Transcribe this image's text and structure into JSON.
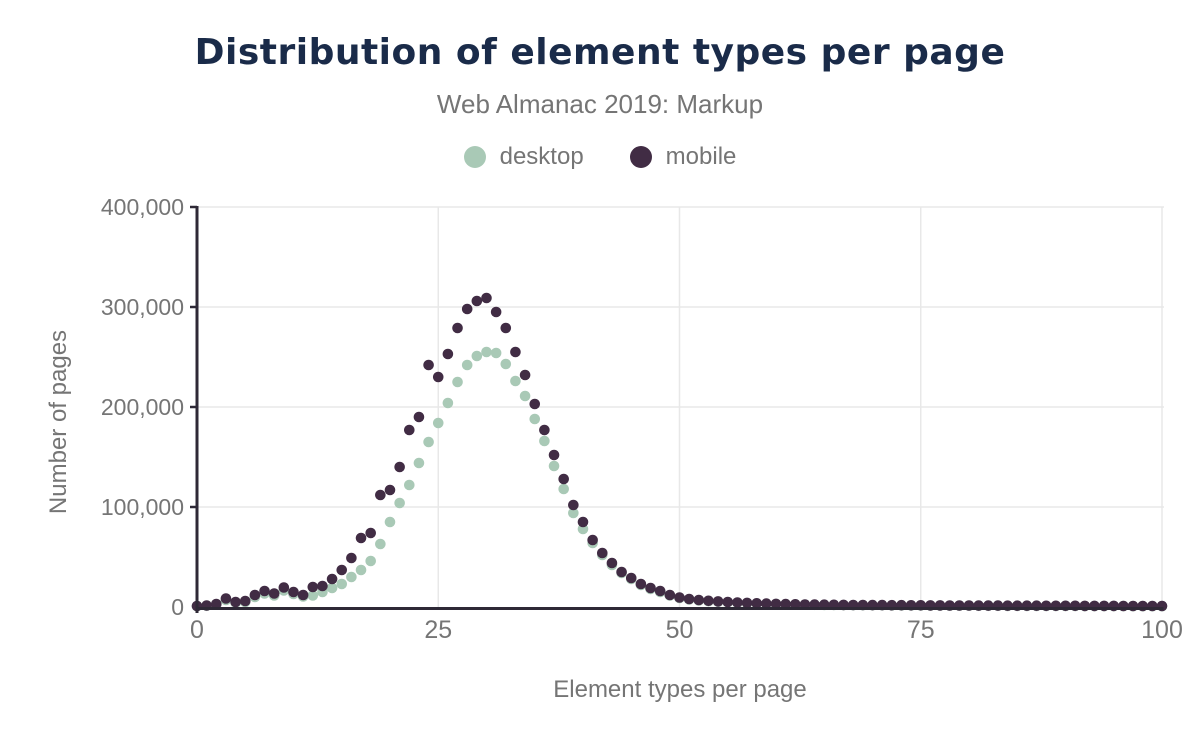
{
  "header": {
    "title": "Distribution of element types per page",
    "subtitle": "Web Almanac 2019: Markup"
  },
  "colors": {
    "title": "#1a2b49",
    "text_gray": "#757575",
    "axis": "#2e2936",
    "gridline": "#e8e8e8",
    "background": "#ffffff",
    "desktop_series": "#a9c9b6",
    "mobile_series": "#412c44"
  },
  "chart_data": {
    "type": "scatter",
    "title": "Distribution of element types per page",
    "subtitle": "Web Almanac 2019: Markup",
    "xlabel": "Element types per page",
    "ylabel": "Number of pages",
    "xlim": [
      0,
      100
    ],
    "ylim": [
      0,
      400000
    ],
    "x_ticks": [
      0,
      25,
      50,
      75,
      100
    ],
    "x_tick_labels": [
      "0",
      "25",
      "50",
      "75",
      "100"
    ],
    "y_ticks": [
      0,
      100000,
      200000,
      300000,
      400000
    ],
    "y_tick_labels": [
      "0",
      "100,000",
      "200,000",
      "300,000",
      "400,000"
    ],
    "grid": true,
    "legend_position": "top",
    "x": [
      0,
      1,
      2,
      3,
      4,
      5,
      6,
      7,
      8,
      9,
      10,
      11,
      12,
      13,
      14,
      15,
      16,
      17,
      18,
      19,
      20,
      21,
      22,
      23,
      24,
      25,
      26,
      27,
      28,
      29,
      30,
      31,
      32,
      33,
      34,
      35,
      36,
      37,
      38,
      39,
      40,
      41,
      42,
      43,
      44,
      45,
      46,
      47,
      48,
      49,
      50,
      51,
      52,
      53,
      54,
      55,
      56,
      57,
      58,
      59,
      60,
      61,
      62,
      63,
      64,
      65,
      66,
      67,
      68,
      69,
      70,
      71,
      72,
      73,
      74,
      75,
      76,
      77,
      78,
      79,
      80,
      81,
      82,
      83,
      84,
      85,
      86,
      87,
      88,
      89,
      90,
      91,
      92,
      93,
      94,
      95,
      96,
      97,
      98,
      99,
      100
    ],
    "series": [
      {
        "name": "desktop",
        "color": "#a9c9b6",
        "values": [
          800,
          1200,
          2500,
          7000,
          4200,
          5000,
          10000,
          13500,
          11500,
          16500,
          13000,
          10500,
          11500,
          15000,
          19000,
          23000,
          30000,
          37000,
          46000,
          63000,
          85000,
          104000,
          122000,
          144000,
          165000,
          184000,
          204000,
          225000,
          242000,
          251000,
          255000,
          254000,
          243000,
          226000,
          211000,
          188000,
          166000,
          141000,
          118000,
          94000,
          78000,
          64000,
          52000,
          42000,
          34000,
          28000,
          22000,
          18000,
          15000,
          11500,
          9000,
          7500,
          6500,
          5800,
          5200,
          4700,
          4200,
          3800,
          3400,
          3100,
          2900,
          2700,
          2500,
          2300,
          2200,
          2100,
          2000,
          1900,
          1800,
          1800,
          1700,
          1700,
          1600,
          1600,
          1500,
          1500,
          1400,
          1400,
          1300,
          1300,
          1300,
          1200,
          1200,
          1200,
          1100,
          1100,
          1100,
          1100,
          1000,
          1000,
          1000,
          1000,
          900,
          900,
          900,
          900,
          900,
          800,
          800,
          800,
          800
        ]
      },
      {
        "name": "mobile",
        "color": "#412c44",
        "values": [
          1000,
          1500,
          3000,
          8500,
          5000,
          6000,
          12000,
          16000,
          13500,
          19500,
          15000,
          12000,
          20000,
          21000,
          28000,
          37000,
          49000,
          69000,
          74000,
          112000,
          117000,
          140000,
          177000,
          190000,
          242000,
          230000,
          253000,
          279000,
          298000,
          306000,
          309000,
          295000,
          279000,
          255000,
          232000,
          203000,
          177000,
          152000,
          128000,
          102000,
          85000,
          67000,
          54000,
          44000,
          35000,
          29000,
          23000,
          19000,
          16000,
          12000,
          9500,
          8000,
          7000,
          6200,
          5600,
          5000,
          4500,
          4100,
          3700,
          3400,
          3100,
          2900,
          2700,
          2500,
          2400,
          2300,
          2200,
          2100,
          2000,
          2000,
          1900,
          1900,
          1800,
          1800,
          1700,
          1700,
          1600,
          1600,
          1500,
          1500,
          1500,
          1400,
          1400,
          1400,
          1300,
          1300,
          1300,
          1300,
          1200,
          1200,
          1200,
          1200,
          1100,
          1100,
          1100,
          1100,
          1000,
          1000,
          1000,
          1000,
          1000
        ]
      }
    ]
  }
}
